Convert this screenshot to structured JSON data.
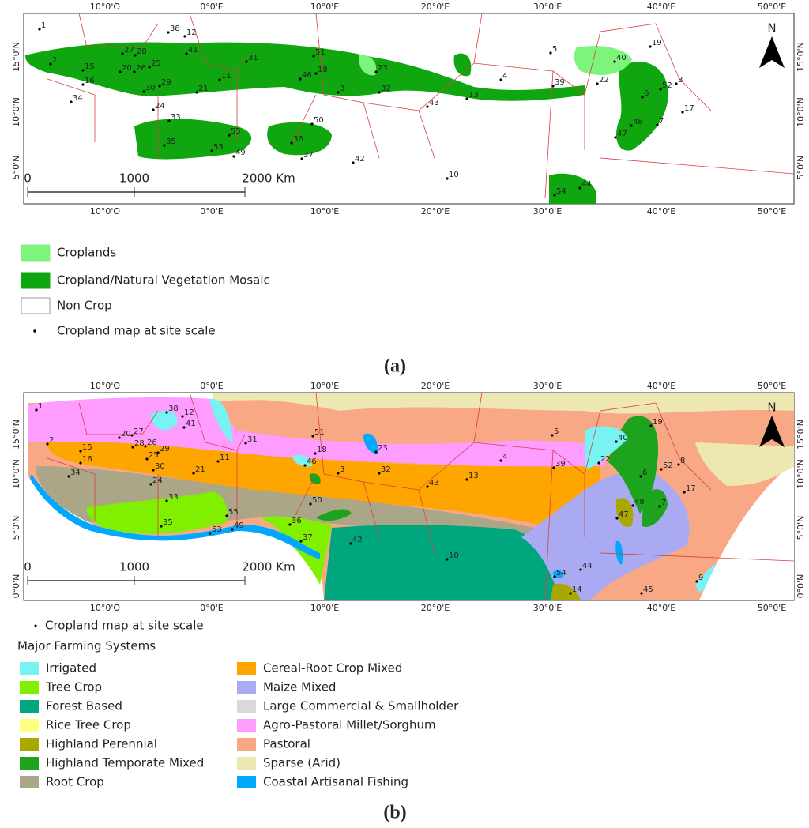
{
  "panel_a": {
    "top_axis_labels": [
      "10°0'O",
      "0°0'E",
      "10°0'E",
      "20°0'E",
      "30°0'E",
      "40°0'E",
      "50°0'E"
    ],
    "bottom_axis_labels": [
      "10°0'O",
      "0°0'E",
      "10°0'E",
      "20°0'E",
      "30°0'E",
      "40°0'E",
      "50°0'E"
    ],
    "left_axis_labels": [
      "15°0'N",
      "10°0'N",
      "5°0'N"
    ],
    "right_axis_labels": [
      "15°0'N",
      "10°0'N",
      "5°0'N"
    ],
    "scale_labels": [
      "0",
      "1000",
      "2000 Km"
    ],
    "north": "N",
    "sites": [
      "1",
      "38",
      "12",
      "41",
      "27",
      "28",
      "20",
      "26",
      "25",
      "2",
      "15",
      "16",
      "34",
      "31",
      "51",
      "46",
      "18",
      "11",
      "21",
      "30",
      "29",
      "24",
      "33",
      "35",
      "55",
      "53",
      "49",
      "50",
      "36",
      "37",
      "3",
      "32",
      "23",
      "42",
      "43",
      "13",
      "4",
      "5",
      "39",
      "22",
      "40",
      "19",
      "8",
      "52",
      "6",
      "17",
      "7",
      "48",
      "47",
      "10",
      "54",
      "44"
    ],
    "legend": [
      {
        "label": "Croplands",
        "color": "#7df57d"
      },
      {
        "label": "Cropland/Natural Vegetation Mosaic",
        "color": "#0fa60f"
      },
      {
        "label": "Non Crop",
        "color": "#ffffff"
      }
    ],
    "site_legend": "Cropland map at site scale",
    "caption": "(a)"
  },
  "panel_b": {
    "top_axis_labels": [
      "10°0'O",
      "0°0'E",
      "10°0'E",
      "20°0'E",
      "30°0'E",
      "40°0'E",
      "50°0'E"
    ],
    "bottom_axis_labels": [
      "10°0'O",
      "0°0'E",
      "10°0'E",
      "20°0'E",
      "30°0'E",
      "40°0'E",
      "50°0'E"
    ],
    "left_axis_labels": [
      "15°0'N",
      "10°0'N",
      "5°0'N",
      "0°0'N"
    ],
    "right_axis_labels": [
      "15°0'N",
      "10°0'N",
      "5°0'N",
      "0°0'N"
    ],
    "scale_labels": [
      "0",
      "1000",
      "2000 Km"
    ],
    "north": "N",
    "sites": [
      "1",
      "38",
      "12",
      "41",
      "27",
      "20",
      "28",
      "26",
      "25",
      "29",
      "2",
      "15",
      "16",
      "34",
      "30",
      "24",
      "21",
      "11",
      "33",
      "35",
      "55",
      "53",
      "49",
      "31",
      "51",
      "18",
      "46",
      "23",
      "3",
      "32",
      "50",
      "36",
      "37",
      "42",
      "43",
      "13",
      "4",
      "5",
      "39",
      "22",
      "40",
      "19",
      "8",
      "52",
      "6",
      "17",
      "7",
      "48",
      "47",
      "10",
      "54",
      "44",
      "14",
      "45",
      "9"
    ],
    "site_legend": "Cropland map at site scale",
    "legend_title": "Major Farming Systems",
    "legend": [
      {
        "label": "Irrigated",
        "color": "#78f2f2"
      },
      {
        "label": "Tree Crop",
        "color": "#80f000"
      },
      {
        "label": "Forest Based",
        "color": "#00a67e"
      },
      {
        "label": "Rice Tree Crop",
        "color": "#ffff80"
      },
      {
        "label": "Highland Perennial",
        "color": "#a8a800"
      },
      {
        "label": "Highland Temporate Mixed",
        "color": "#1ea31e"
      },
      {
        "label": "Root Crop",
        "color": "#aba687"
      },
      {
        "label": "Cereal-Root Crop Mixed",
        "color": "#ffa500"
      },
      {
        "label": "Maize Mixed",
        "color": "#aaaaf2"
      },
      {
        "label": "Large Commercial & Smallholder",
        "color": "#d9d9d9"
      },
      {
        "label": "Agro-Pastoral Millet/Sorghum",
        "color": "#ff9cff"
      },
      {
        "label": "Pastoral",
        "color": "#f8a884"
      },
      {
        "label": "Sparse (Arid)",
        "color": "#ede7b1"
      },
      {
        "label": "Coastal Artisanal Fishing",
        "color": "#00a8ff"
      }
    ],
    "caption": "(b)"
  }
}
